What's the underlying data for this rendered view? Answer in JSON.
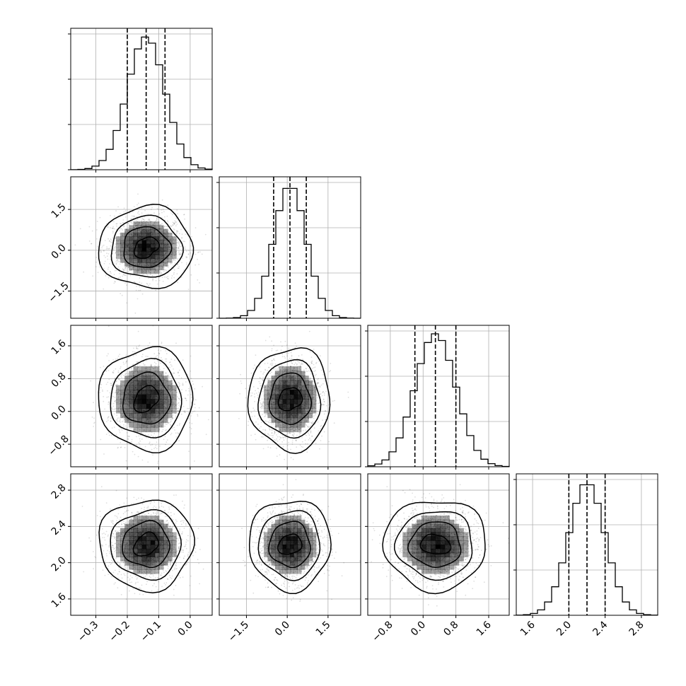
{
  "style": {
    "line_color": "#000000",
    "grid_color": "#b0b0b0",
    "scatter_color": "#000000",
    "density_color": "#000000",
    "background": "#ffffff"
  },
  "chart_data": {
    "type": "corner",
    "grid": true,
    "params": [
      {
        "name": "",
        "range": [
          -0.38,
          0.07
        ],
        "mean": -0.14,
        "std": 0.06,
        "quantiles": [
          -0.2,
          -0.14,
          -0.08
        ],
        "ticks": [
          -0.3,
          -0.2,
          -0.1,
          0.0
        ],
        "tick_labels": [
          "−0.3",
          "−0.2",
          "−0.1",
          "0.0"
        ]
      },
      {
        "name": "",
        "range": [
          -2.5,
          2.7
        ],
        "mean": 0.1,
        "std": 0.6,
        "quantiles": [
          -0.5,
          0.1,
          0.7
        ],
        "ticks": [
          -1.5,
          0.0,
          1.5
        ],
        "tick_labels": [
          "−1.5",
          "0.0",
          "1.5"
        ]
      },
      {
        "name": "",
        "range": [
          -1.35,
          2.1
        ],
        "mean": 0.3,
        "std": 0.5,
        "quantiles": [
          -0.2,
          0.3,
          0.8
        ],
        "ticks": [
          -0.8,
          0.0,
          0.8,
          1.6
        ],
        "tick_labels": [
          "−0.8",
          "0.0",
          "0.8",
          "1.6"
        ]
      },
      {
        "name": "",
        "range": [
          1.42,
          2.98
        ],
        "mean": 2.2,
        "std": 0.2,
        "quantiles": [
          2.0,
          2.2,
          2.4
        ],
        "ticks": [
          1.6,
          2.0,
          2.4,
          2.8
        ],
        "tick_labels": [
          "1.6",
          "2.0",
          "2.4",
          "2.8"
        ]
      }
    ],
    "histogram_bins": 20,
    "contour_levels_sigma": [
      0.5,
      1.0,
      1.5,
      2.0
    ],
    "scatter_points": 1800
  }
}
